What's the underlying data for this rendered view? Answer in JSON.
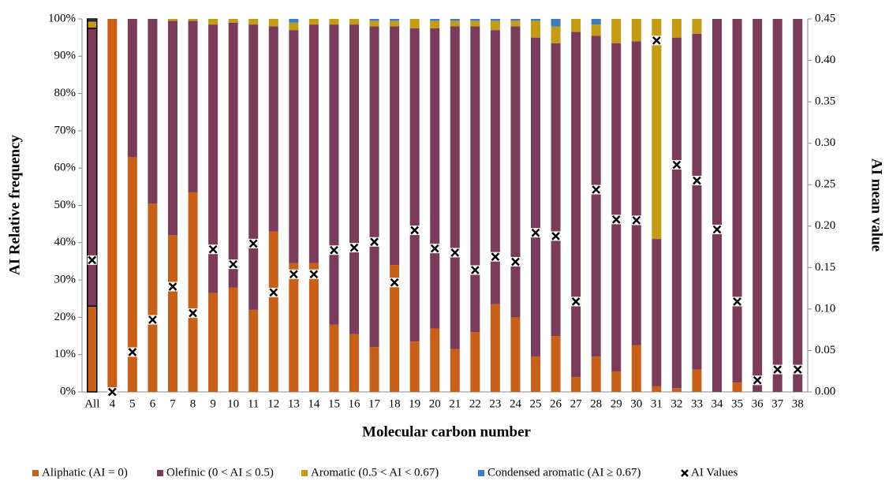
{
  "chart_data": {
    "type": "bar",
    "stacked": true,
    "x_label": "Molecular carbon number",
    "y_label": "AI Relative frequency",
    "y2_label": "AI mean value",
    "categories": [
      "All",
      "4",
      "5",
      "6",
      "7",
      "8",
      "9",
      "10",
      "11",
      "12",
      "13",
      "14",
      "15",
      "16",
      "17",
      "18",
      "19",
      "20",
      "21",
      "22",
      "23",
      "24",
      "25",
      "26",
      "27",
      "28",
      "29",
      "30",
      "31",
      "32",
      "33",
      "34",
      "35",
      "36",
      "37",
      "38"
    ],
    "series": [
      {
        "name": "Aliphatic (AI = 0)",
        "color": "#c8601a",
        "values": [
          23,
          100,
          63,
          50.5,
          42,
          53.5,
          26.5,
          28,
          22,
          43,
          34.5,
          34.5,
          18,
          15.5,
          12,
          34,
          13.5,
          17,
          11.5,
          16,
          23.5,
          20,
          9.5,
          15,
          4,
          9.5,
          5.5,
          12.5,
          1.5,
          1,
          6,
          0,
          2.5,
          0,
          0,
          0
        ]
      },
      {
        "name": "Olefinic (0 < AI ≤ 0.5)",
        "color": "#7b3b5b",
        "values": [
          74.5,
          0,
          37,
          49.5,
          57.5,
          46,
          72,
          71,
          76.5,
          55,
          62.5,
          64,
          80.5,
          83,
          86,
          64,
          84,
          80.5,
          86.5,
          82,
          73.5,
          78,
          85.5,
          78.5,
          92.5,
          86,
          88,
          81.5,
          39.5,
          94,
          90,
          100,
          97.5,
          100,
          100,
          100
        ]
      },
      {
        "name": "Aromatic (0.5 < AI < 0.67)",
        "color": "#c59a14",
        "values": [
          2,
          0,
          0,
          0,
          0.5,
          0.5,
          1.5,
          1,
          1.5,
          2,
          2,
          1.5,
          1.5,
          1.5,
          1.5,
          1.5,
          2.5,
          2,
          1.5,
          1.5,
          2.5,
          1.5,
          4.5,
          4.5,
          3.5,
          3,
          6.5,
          6,
          59,
          5,
          4,
          0,
          0,
          0,
          0,
          0
        ]
      },
      {
        "name": "Condensed aromatic (AI ≥ 0.67)",
        "color": "#3a7dc0",
        "values": [
          0.5,
          0,
          0,
          0,
          0,
          0,
          0,
          0,
          0,
          0,
          1,
          0,
          0,
          0,
          0.5,
          0.5,
          0,
          0.5,
          0.5,
          0.5,
          0.5,
          0.5,
          0.5,
          2,
          0,
          1.5,
          0,
          0,
          0,
          0,
          0,
          0,
          0,
          0,
          0,
          0
        ]
      },
      {
        "name": "AI Values",
        "color": "#000000",
        "axis": "y2",
        "marker": "x",
        "values": [
          0.159,
          0,
          0.048,
          0.087,
          0.127,
          0.095,
          0.172,
          0.154,
          0.179,
          0.12,
          0.142,
          0.142,
          0.171,
          0.174,
          0.181,
          0.132,
          0.195,
          0.173,
          0.168,
          0.147,
          0.163,
          0.157,
          0.192,
          0.188,
          0.109,
          0.244,
          0.208,
          0.207,
          0.424,
          0.274,
          0.255,
          0.196,
          0.109,
          0.014,
          0.027,
          0.027
        ]
      }
    ],
    "ylim": [
      0,
      100
    ],
    "yticks": [
      {
        "value": 0,
        "label": "0%"
      },
      {
        "value": 10,
        "label": "10%"
      },
      {
        "value": 20,
        "label": "20%"
      },
      {
        "value": 30,
        "label": "30%"
      },
      {
        "value": 40,
        "label": "40%"
      },
      {
        "value": 50,
        "label": "50%"
      },
      {
        "value": 60,
        "label": "60%"
      },
      {
        "value": 70,
        "label": "70%"
      },
      {
        "value": 80,
        "label": "80%"
      },
      {
        "value": 90,
        "label": "90%"
      },
      {
        "value": 100,
        "label": "100%"
      }
    ],
    "y2lim": [
      0,
      0.45
    ],
    "y2ticks": [
      {
        "value": 0,
        "label": "0.00"
      },
      {
        "value": 0.05,
        "label": "0.05"
      },
      {
        "value": 0.1,
        "label": "0.10"
      },
      {
        "value": 0.15,
        "label": "0.15"
      },
      {
        "value": 0.2,
        "label": "0.20"
      },
      {
        "value": 0.25,
        "label": "0.25"
      },
      {
        "value": 0.3,
        "label": "0.30"
      },
      {
        "value": 0.35,
        "label": "0.35"
      },
      {
        "value": 0.4,
        "label": "0.40"
      },
      {
        "value": 0.45,
        "label": "0.45"
      }
    ],
    "grid": false,
    "legend": "bottom"
  }
}
